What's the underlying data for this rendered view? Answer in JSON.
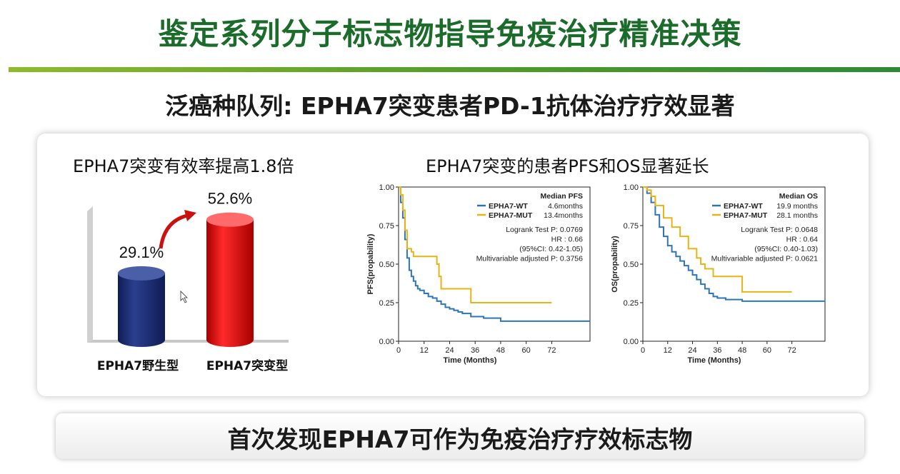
{
  "header": {
    "title": "鉴定系列分子标志物指导免疫治疗精准决策",
    "subtitle": "泛癌种队列: EPHA7突变患者PD-1抗体治疗疗效显著"
  },
  "left_panel": {
    "heading": "EPHA7突变有效率提高1.8倍"
  },
  "right_panel": {
    "heading": "EPHA7突变的患者PFS和OS显著延长"
  },
  "footer": {
    "text": "首次发现EPHA7可作为免疫治疗疗效标志物"
  },
  "colors": {
    "wt": "#2e75b6",
    "mut": "#e6b417",
    "wt_bar": "#1c2f78",
    "mut_bar": "#e61010"
  },
  "chart_data": [
    {
      "type": "bar",
      "categories": [
        "EPHA7野生型",
        "EPHA7突变型"
      ],
      "values": [
        29.1,
        52.6
      ],
      "value_labels": [
        "29.1%",
        "52.6%"
      ],
      "ylim": [
        0,
        60
      ]
    },
    {
      "type": "line",
      "ylabel": "PFS(propability)",
      "xlabel": "Time (Months)",
      "xticks": [
        0,
        12,
        24,
        36,
        48,
        60,
        72
      ],
      "yticks": [
        "0.00",
        "0.25",
        "0.50",
        "0.75",
        "1.00"
      ],
      "xlim": [
        0,
        90
      ],
      "ylim": [
        0,
        1
      ],
      "legend_title": "Median PFS",
      "stats": [
        "Logrank Test P: 0.0769",
        "HR : 0.66",
        "(95%CI: 0.42-1.05)",
        "Multivariable adjusted P: 0.3756"
      ],
      "series": [
        {
          "name": "EPHA7-WT",
          "median": "4.6months",
          "x": [
            0,
            1,
            2,
            3,
            4,
            5,
            6,
            7,
            8,
            9,
            10,
            12,
            14,
            16,
            18,
            20,
            22,
            24,
            26,
            28,
            30,
            34,
            40,
            48,
            60,
            72,
            90
          ],
          "y": [
            1.0,
            0.9,
            0.8,
            0.66,
            0.54,
            0.46,
            0.42,
            0.39,
            0.36,
            0.34,
            0.33,
            0.31,
            0.29,
            0.28,
            0.26,
            0.24,
            0.22,
            0.21,
            0.2,
            0.19,
            0.18,
            0.16,
            0.15,
            0.13,
            0.13,
            0.13,
            0.13
          ]
        },
        {
          "name": "EPHA7-MUT",
          "median": "13.4months",
          "x": [
            0,
            1,
            2,
            3,
            4,
            6,
            7,
            18,
            19,
            20,
            22,
            34,
            72
          ],
          "y": [
            1.0,
            0.95,
            0.85,
            0.72,
            0.6,
            0.58,
            0.55,
            0.5,
            0.42,
            0.34,
            0.34,
            0.25,
            0.25
          ]
        }
      ]
    },
    {
      "type": "line",
      "ylabel": "OS(propability)",
      "xlabel": "Time (Months)",
      "xticks": [
        0,
        12,
        24,
        36,
        48,
        60,
        72
      ],
      "yticks": [
        "0.00",
        "0.25",
        "0.50",
        "0.75",
        "1.00"
      ],
      "xlim": [
        0,
        88
      ],
      "ylim": [
        0,
        1
      ],
      "legend_title": "Median OS",
      "stats": [
        "Logrank Test P: 0.0648",
        "HR : 0.64",
        "(95%CI: 0.40-1.03)",
        "Multivariable adjusted P: 0.0621"
      ],
      "series": [
        {
          "name": "EPHA7-WT",
          "median": "19.9 months",
          "x": [
            0,
            2,
            4,
            6,
            8,
            10,
            12,
            14,
            16,
            18,
            20,
            22,
            24,
            26,
            28,
            30,
            32,
            34,
            36,
            40,
            48,
            60,
            72,
            88
          ],
          "y": [
            1.0,
            0.96,
            0.9,
            0.82,
            0.74,
            0.68,
            0.62,
            0.58,
            0.55,
            0.52,
            0.49,
            0.46,
            0.43,
            0.4,
            0.37,
            0.34,
            0.31,
            0.29,
            0.28,
            0.27,
            0.26,
            0.26,
            0.26,
            0.26
          ]
        },
        {
          "name": "EPHA7-MUT",
          "median": "28.1 months",
          "x": [
            0,
            2,
            4,
            6,
            10,
            14,
            18,
            22,
            26,
            28,
            30,
            34,
            46,
            48,
            72
          ],
          "y": [
            1.0,
            0.98,
            0.94,
            0.88,
            0.8,
            0.74,
            0.68,
            0.6,
            0.54,
            0.5,
            0.47,
            0.42,
            0.42,
            0.32,
            0.32
          ]
        }
      ]
    }
  ]
}
